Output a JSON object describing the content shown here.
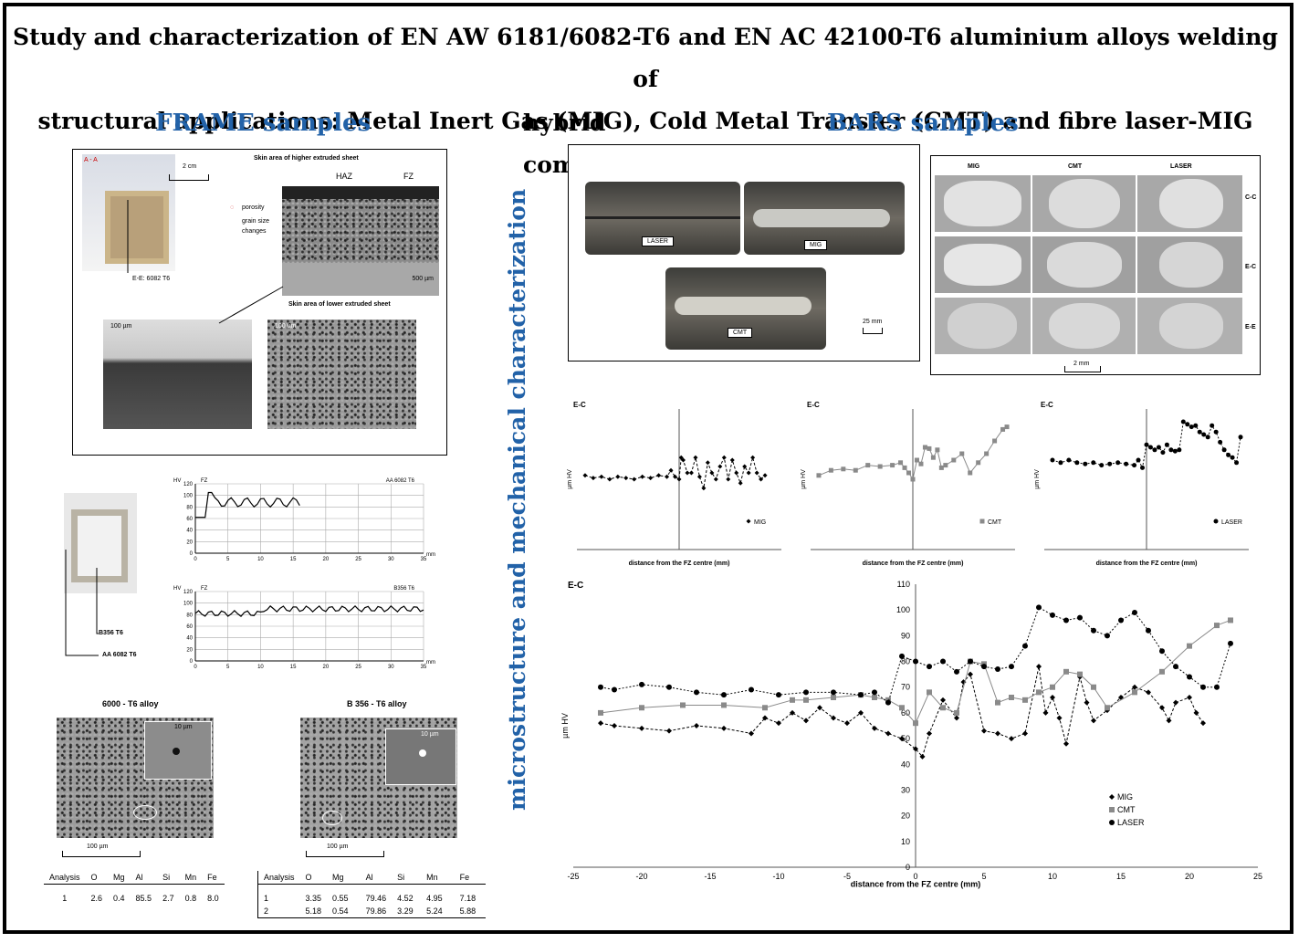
{
  "title": {
    "line1": "Study and characterization of EN AW 6181/6082-T6 and EN AC 42100-T6 aluminium alloys welding of",
    "line2": "structural applications: Metal Inert Gas (MIG), Cold Metal Transfer (CMT) and fibre laser-MIG",
    "line3": "hybrid comparison"
  },
  "sections": {
    "frame": "FRAME samples",
    "bars": "BARS samples",
    "vertical": "microstructure and mechanical characterization"
  },
  "frame_figure": {
    "aa_label": "A - A",
    "scale_2cm": "2 cm",
    "skin_higher": "Skin area of higher extruded sheet",
    "skin_lower": "Skin area of lower extruded sheet",
    "haz": "HAZ",
    "fz": "FZ",
    "porosity": "porosity",
    "grain_size_1": "grain size",
    "grain_size_2": "changes",
    "ee_label": "E-E: 6082 T6",
    "scale_500": "500 µm",
    "scale_100a": "100 µm",
    "scale_100b": "100 µm"
  },
  "hardness_small": {
    "top_title": "AA 6082 T6",
    "bottom_title": "B356 T6",
    "fz": "FZ",
    "hv": "HV",
    "mm": "mm",
    "label_b356": "B356 T6",
    "label_aa6082": "AA 6082 T6",
    "yticks": [
      "0",
      "20",
      "40",
      "60",
      "80",
      "100",
      "120"
    ],
    "xticks": [
      "0",
      "5",
      "10",
      "15",
      "20",
      "25",
      "30",
      "35"
    ]
  },
  "micrographs": {
    "left_title": "6000 - T6 alloy",
    "right_title": "B 356 - T6 alloy",
    "inset_scale": "10 µm",
    "scale": "100 µm"
  },
  "analysis_left": {
    "headers": [
      "Analysis",
      "O",
      "Mg",
      "Al",
      "Si",
      "Mn",
      "Fe"
    ],
    "rows": [
      [
        "1",
        "2.6",
        "0.4",
        "85.5",
        "2.7",
        "0.8",
        "8.0"
      ]
    ]
  },
  "analysis_right": {
    "headers": [
      "Analysis",
      "O",
      "Mg",
      "Al",
      "Si",
      "Mn",
      "Fe"
    ],
    "rows": [
      [
        "1",
        "3.35",
        "0.55",
        "79.46",
        "4.52",
        "4.95",
        "7.18"
      ],
      [
        "2",
        "5.18",
        "0.54",
        "79.86",
        "3.29",
        "5.24",
        "5.88"
      ]
    ]
  },
  "bars_photo": {
    "laser": "LASER",
    "mig": "MIG",
    "cmt": "CMT",
    "scale": "25 mm"
  },
  "bars_sections": {
    "cols": [
      "MIG",
      "CMT",
      "LASER"
    ],
    "rows": [
      "C-C",
      "E-C",
      "E-E"
    ],
    "scale": "2 mm"
  },
  "chart_data": [
    {
      "type": "line",
      "title": "E-C",
      "ylabel": "µm HV",
      "xlabel": "distance from the FZ centre (mm)",
      "legend": "MIG",
      "xlim": [
        -25,
        25
      ],
      "ylim": [
        0,
        110
      ],
      "series": [
        {
          "name": "MIG",
          "x": [
            -23,
            -21,
            -19,
            -17,
            -15,
            -13,
            -11,
            -9,
            -7,
            -5,
            -3,
            -2,
            -1,
            0,
            0.5,
            1,
            2,
            3,
            4,
            5,
            6,
            7,
            8,
            9,
            10,
            11,
            12,
            13,
            14,
            15,
            16,
            17,
            18,
            19,
            20,
            21
          ],
          "values": [
            58,
            56,
            57,
            55,
            57,
            56,
            55,
            57,
            56,
            58,
            57,
            62,
            57,
            55,
            72,
            70,
            60,
            60,
            72,
            57,
            48,
            68,
            60,
            55,
            65,
            72,
            55,
            70,
            60,
            52,
            65,
            60,
            72,
            60,
            55,
            58
          ]
        }
      ]
    },
    {
      "type": "line",
      "title": "E-C",
      "ylabel": "µm HV",
      "xlabel": "distance from the FZ centre (mm)",
      "legend": "CMT",
      "xlim": [
        -25,
        25
      ],
      "ylim": [
        0,
        110
      ],
      "series": [
        {
          "name": "CMT",
          "x": [
            -23,
            -20,
            -17,
            -14,
            -11,
            -8,
            -5,
            -3,
            -2,
            -1,
            0,
            1,
            2,
            3,
            4,
            5,
            6,
            7,
            8,
            10,
            12,
            14,
            16,
            18,
            20,
            22,
            23
          ],
          "values": [
            58,
            62,
            63,
            62,
            66,
            65,
            66,
            68,
            64,
            60,
            55,
            70,
            67,
            80,
            79,
            72,
            78,
            64,
            66,
            70,
            75,
            60,
            68,
            75,
            85,
            94,
            96
          ]
        }
      ]
    },
    {
      "type": "line",
      "title": "E-C",
      "ylabel": "µm HV",
      "xlabel": "distance from the FZ centre (mm)",
      "legend": "LASER",
      "xlim": [
        -25,
        25
      ],
      "ylim": [
        0,
        110
      ],
      "series": [
        {
          "name": "LASER",
          "x": [
            -23,
            -21,
            -19,
            -17,
            -15,
            -13,
            -11,
            -9,
            -7,
            -5,
            -3,
            -2,
            -1,
            0,
            1,
            2,
            3,
            4,
            5,
            6,
            7,
            8,
            9,
            10,
            11,
            12,
            13,
            14,
            15,
            16,
            17,
            18,
            19,
            20,
            21,
            22,
            23
          ],
          "values": [
            70,
            68,
            70,
            68,
            67,
            68,
            66,
            67,
            68,
            67,
            66,
            70,
            64,
            82,
            80,
            78,
            80,
            76,
            82,
            78,
            77,
            78,
            100,
            98,
            96,
            97,
            92,
            90,
            88,
            97,
            92,
            84,
            78,
            74,
            72,
            68,
            88
          ]
        }
      ]
    },
    {
      "type": "line",
      "title": "E-C",
      "ylabel": "µm HV",
      "xlabel": "distance from the FZ centre (mm)",
      "xlim": [
        -25,
        25
      ],
      "ylim": [
        0,
        110
      ],
      "xticks": [
        "-25",
        "-20",
        "-15",
        "-10",
        "-5",
        "0",
        "5",
        "10",
        "15",
        "20",
        "25"
      ],
      "yticks": [
        "0",
        "10",
        "20",
        "30",
        "40",
        "50",
        "60",
        "70",
        "80",
        "90",
        "100",
        "110"
      ],
      "series": [
        {
          "name": "MIG",
          "x": [
            -23,
            -22,
            -20,
            -18,
            -16,
            -14,
            -12,
            -11,
            -10,
            -9,
            -8,
            -7,
            -6,
            -5,
            -4,
            -3,
            -2,
            -1,
            0,
            0.5,
            1,
            2,
            3,
            3.5,
            4,
            5,
            6,
            7,
            8,
            9,
            9.5,
            10,
            10.5,
            11,
            12,
            12.5,
            13,
            14,
            15,
            16,
            17,
            18,
            18.5,
            19,
            20,
            20.5,
            21
          ],
          "values": [
            56,
            55,
            54,
            53,
            55,
            54,
            52,
            58,
            56,
            60,
            57,
            62,
            58,
            56,
            60,
            54,
            52,
            50,
            46,
            43,
            52,
            65,
            58,
            72,
            75,
            53,
            52,
            50,
            52,
            78,
            60,
            66,
            58,
            48,
            74,
            64,
            57,
            61,
            66,
            70,
            68,
            62,
            57,
            64,
            66,
            60,
            56
          ]
        },
        {
          "name": "CMT",
          "x": [
            -23,
            -20,
            -17,
            -14,
            -11,
            -9,
            -8,
            -6,
            -4,
            -3,
            -2,
            -1,
            0,
            1,
            2,
            3,
            4,
            5,
            6,
            7,
            8,
            9,
            10,
            11,
            12,
            13,
            14,
            16,
            18,
            20,
            22,
            23
          ],
          "values": [
            60,
            62,
            63,
            63,
            62,
            65,
            65,
            66,
            67,
            66,
            65,
            62,
            56,
            68,
            62,
            60,
            80,
            79,
            64,
            66,
            65,
            68,
            70,
            76,
            75,
            70,
            62,
            68,
            76,
            86,
            94,
            96
          ]
        },
        {
          "name": "LASER",
          "x": [
            -23,
            -22,
            -20,
            -18,
            -16,
            -14,
            -12,
            -10,
            -8,
            -6,
            -4,
            -3,
            -2,
            -1,
            0,
            1,
            2,
            3,
            4,
            5,
            6,
            7,
            8,
            9,
            10,
            11,
            12,
            13,
            14,
            15,
            16,
            17,
            18,
            19,
            20,
            21,
            22,
            23
          ],
          "values": [
            70,
            69,
            71,
            70,
            68,
            67,
            69,
            67,
            68,
            68,
            67,
            68,
            64,
            82,
            80,
            78,
            80,
            76,
            80,
            78,
            77,
            78,
            86,
            101,
            98,
            96,
            97,
            92,
            90,
            96,
            99,
            92,
            84,
            78,
            74,
            70,
            70,
            87
          ]
        }
      ],
      "legend": [
        "MIG",
        "CMT",
        "LASER"
      ],
      "legend_position": "center"
    }
  ]
}
